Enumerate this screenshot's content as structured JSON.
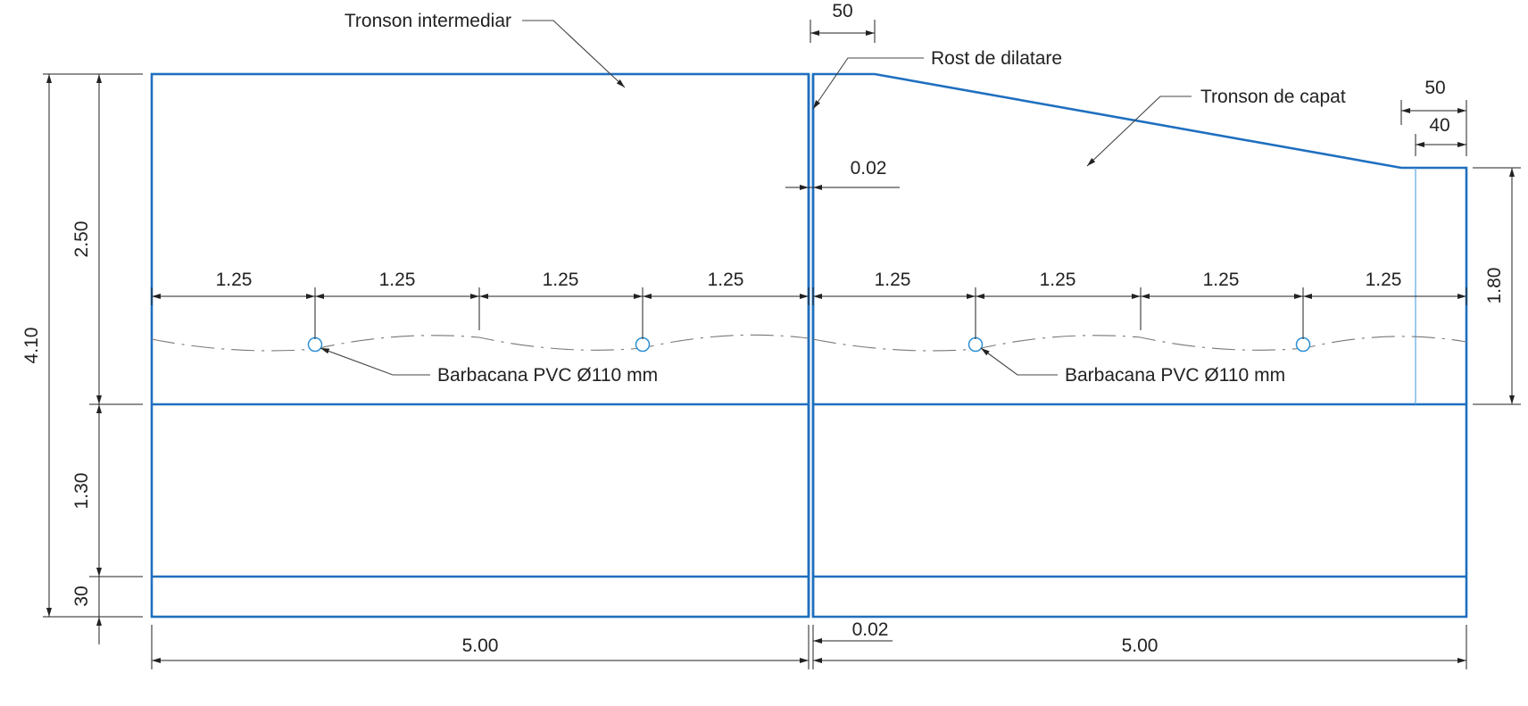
{
  "labels": {
    "tronson_intermediar": "Tronson intermediar",
    "rost_de_dilatare": "Rost de dilatare",
    "tronson_de_capat": "Tronson de capat",
    "barbacana_left": "Barbacana PVC Ø110 mm",
    "barbacana_right": "Barbacana PVC Ø110 mm"
  },
  "dimensions": {
    "top_joint_offset": "50",
    "top_right_50": "50",
    "top_right_40": "40",
    "joint_top": "0.02",
    "joint_bottom": "0.02",
    "left_total_height": "4.10",
    "left_upper_height": "2.50",
    "left_middle_height": "1.30",
    "left_base_height": "30",
    "right_end_height": "1.80",
    "left_length": "5.00",
    "right_length": "5.00",
    "weep_spacing_left": [
      "1.25",
      "1.25",
      "1.25",
      "1.25"
    ],
    "weep_spacing_right": [
      "1.25",
      "1.25",
      "1.25",
      "1.25"
    ]
  },
  "colors": {
    "wall_outline": "#1f6fbf",
    "dimension_lines": "#222222",
    "weep_hole": "#2b8fd6"
  }
}
